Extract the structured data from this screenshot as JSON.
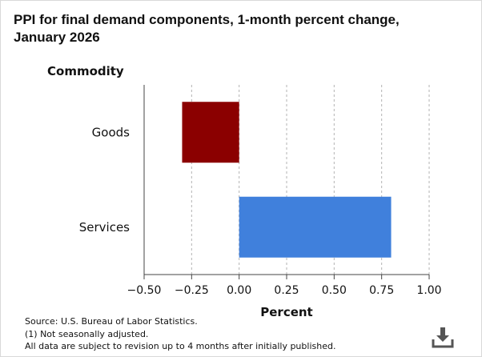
{
  "title": "PPI for final demand components, 1-month percent change, January 2026",
  "chart_data": {
    "type": "bar",
    "orientation": "horizontal",
    "title": "PPI for final demand components, 1-month percent change, January 2026",
    "ylabel": "Commodity",
    "xlabel": "Percent",
    "categories": [
      "Goods",
      "Services"
    ],
    "values": [
      -0.3,
      0.8
    ],
    "colors": [
      "#8b0000",
      "#4080dc"
    ],
    "xlim": [
      -0.5,
      1.0
    ],
    "xticks": [
      -0.5,
      -0.25,
      0.0,
      0.25,
      0.5,
      0.75,
      1.0
    ],
    "xtick_labels": [
      "−0.50",
      "−0.25",
      "0.00",
      "0.25",
      "0.50",
      "0.75",
      "1.00"
    ],
    "grid": true
  },
  "footer": {
    "source": "Source: U.S. Bureau of Labor Statistics.",
    "note1": "(1) Not seasonally adjusted.",
    "note2": "All data are subject to revision up to 4 months after initially published."
  },
  "icons": {
    "download": "download-icon"
  }
}
